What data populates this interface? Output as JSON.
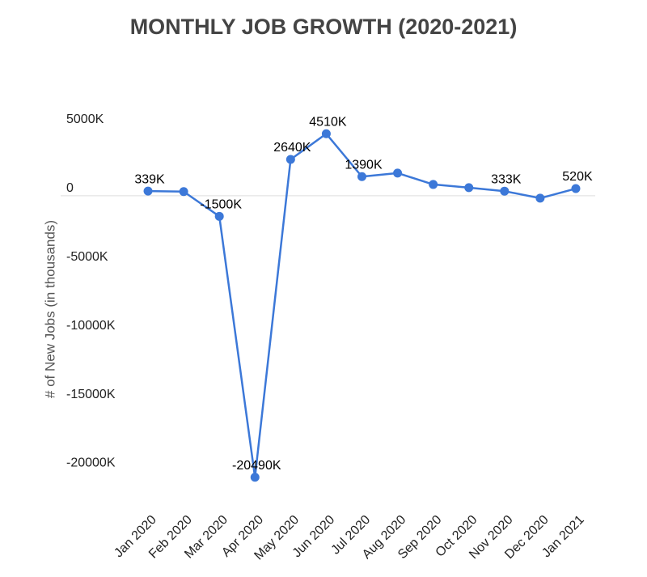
{
  "chart_data": {
    "type": "line",
    "title": "MONTHLY JOB GROWTH (2020-2021)",
    "y_label": "# of New Jobs (in thousands)",
    "categories": [
      "Jan 2020",
      "Feb 2020",
      "Mar 2020",
      "Apr 2020",
      "May 2020",
      "Jun 2020",
      "Jul 2020",
      "Aug 2020",
      "Sep 2020",
      "Oct 2020",
      "Nov 2020",
      "Dec 2020",
      "Jan 2021"
    ],
    "series": [
      {
        "name": "New Jobs",
        "color": "#3c78d8",
        "values": [
          339,
          300,
          -1500,
          -20490,
          2640,
          4510,
          1390,
          1650,
          820,
          590,
          333,
          -180,
          520
        ],
        "value_labels": [
          "339K",
          null,
          "-1500K",
          "-20490K",
          "2640K",
          "4510K",
          "1390K",
          null,
          null,
          null,
          "333K",
          null,
          "520K"
        ]
      }
    ],
    "ylim": [
      -21800,
      9650
    ],
    "yticks": [
      {
        "value": 5000,
        "label": "5000K"
      },
      0,
      {
        "value": -5000,
        "label": "-5000K"
      },
      {
        "value": -10000,
        "label": "-10000K"
      },
      {
        "value": -15000,
        "label": "-15000K"
      },
      {
        "value": -20000,
        "label": "-20000K"
      }
    ],
    "grid": false
  }
}
